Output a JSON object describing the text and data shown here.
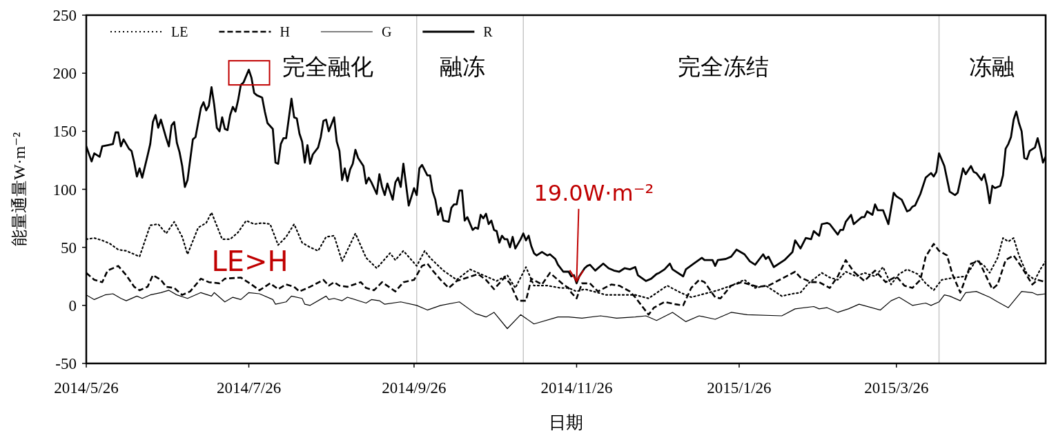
{
  "chart_data": {
    "type": "line",
    "xlabel": "日期",
    "ylabel": "能量通量W·m⁻²",
    "xlim": [
      "2014-05-26",
      "2015-05-21"
    ],
    "xticks": [
      {
        "value": "2014-05-26",
        "label": "2014/5/26"
      },
      {
        "value": "2014-07-26",
        "label": "2014/7/26"
      },
      {
        "value": "2014-09-26",
        "label": "2014/9/26"
      },
      {
        "value": "2014-11-26",
        "label": "2014/11/26"
      },
      {
        "value": "2015-01-26",
        "label": "2015/1/26"
      },
      {
        "value": "2015-03-26",
        "label": "2015/3/26"
      }
    ],
    "ylim": [
      -50,
      250
    ],
    "yticks": [
      -50,
      0,
      50,
      100,
      150,
      200,
      250
    ],
    "legend": "top left",
    "series": [
      {
        "name": "LE",
        "color": "#000000",
        "line_style": "dotted",
        "x": [
          "2014-05-26",
          "2014-05-29",
          "2014-06-01",
          "2014-06-04",
          "2014-06-07",
          "2014-06-10",
          "2014-06-13",
          "2014-06-15",
          "2014-06-19",
          "2014-06-22",
          "2014-06-25",
          "2014-06-28",
          "2014-07-01",
          "2014-07-03",
          "2014-07-07",
          "2014-07-10",
          "2014-07-12",
          "2014-07-16",
          "2014-07-19",
          "2014-07-22",
          "2014-07-25",
          "2014-07-28",
          "2014-07-31",
          "2014-08-03",
          "2014-08-06",
          "2014-08-09",
          "2014-08-12",
          "2014-08-15",
          "2014-08-18",
          "2014-08-21",
          "2014-08-24",
          "2014-08-27",
          "2014-08-30",
          "2014-09-04",
          "2014-09-08",
          "2014-09-12",
          "2014-09-17",
          "2014-09-19",
          "2014-09-22",
          "2014-09-27",
          "2014-09-30",
          "2014-10-02",
          "2014-10-07",
          "2014-10-12",
          "2014-10-17",
          "2014-10-23",
          "2014-10-27",
          "2014-10-31",
          "2014-11-03",
          "2014-11-07",
          "2014-11-10",
          "2014-11-15",
          "2014-11-20",
          "2014-11-23",
          "2014-11-26",
          "2014-11-29",
          "2014-12-04",
          "2014-12-07",
          "2014-12-14",
          "2014-12-18",
          "2014-12-23",
          "2014-12-30",
          "2015-01-04",
          "2015-01-08",
          "2015-01-13",
          "2015-01-18",
          "2015-01-23",
          "2015-01-28",
          "2015-02-01",
          "2015-02-05",
          "2015-02-11",
          "2015-02-15",
          "2015-02-18",
          "2015-02-21",
          "2015-02-26",
          "2015-03-01",
          "2015-03-04",
          "2015-03-07",
          "2015-03-11",
          "2015-03-14",
          "2015-03-18",
          "2015-03-21",
          "2015-03-24",
          "2015-03-27",
          "2015-03-30",
          "2015-04-03",
          "2015-04-06",
          "2015-04-09",
          "2015-04-12",
          "2015-04-17",
          "2015-04-21",
          "2015-04-25",
          "2015-04-28",
          "2015-04-30",
          "2015-05-03",
          "2015-05-05",
          "2015-05-07",
          "2015-05-09",
          "2015-05-11",
          "2015-05-14",
          "2015-05-17",
          "2015-05-19",
          "2015-05-21"
        ],
        "values": [
          57,
          58,
          56,
          53,
          48,
          47,
          44,
          42,
          69,
          70,
          62,
          72,
          59,
          44,
          67,
          71,
          80,
          57,
          57,
          63,
          73,
          70,
          71,
          70,
          52,
          59,
          70,
          54,
          50,
          47,
          59,
          60,
          38,
          62,
          41,
          32,
          45,
          39,
          47,
          34,
          47,
          41,
          30,
          22,
          31,
          25,
          21,
          26,
          15,
          33,
          17,
          17,
          15,
          15,
          12,
          14,
          11,
          9,
          9,
          9,
          6,
          17,
          11,
          7,
          10,
          13,
          17,
          22,
          15,
          17,
          8,
          10,
          11,
          19,
          28,
          24,
          22,
          29,
          25,
          28,
          25,
          33,
          18,
          27,
          31,
          27,
          19,
          13,
          22,
          24,
          25,
          39,
          34,
          28,
          41,
          58,
          55,
          58,
          43,
          27,
          22,
          31,
          38
        ]
      },
      {
        "name": "H",
        "color": "#000000",
        "line_style": "dashed",
        "x": [
          "2014-05-26",
          "2014-05-29",
          "2014-06-01",
          "2014-06-03",
          "2014-06-07",
          "2014-06-10",
          "2014-06-13",
          "2014-06-15",
          "2014-06-18",
          "2014-06-20",
          "2014-06-23",
          "2014-06-25",
          "2014-06-28",
          "2014-07-01",
          "2014-07-04",
          "2014-07-08",
          "2014-07-11",
          "2014-07-15",
          "2014-07-17",
          "2014-07-23",
          "2014-07-27",
          "2014-07-30",
          "2014-08-03",
          "2014-08-06",
          "2014-08-09",
          "2014-08-12",
          "2014-08-14",
          "2014-08-18",
          "2014-08-23",
          "2014-08-25",
          "2014-08-27",
          "2014-08-29",
          "2014-09-01",
          "2014-09-06",
          "2014-09-08",
          "2014-09-11",
          "2014-09-14",
          "2014-09-19",
          "2014-09-22",
          "2014-09-26",
          "2014-09-29",
          "2014-10-01",
          "2014-10-03",
          "2014-10-06",
          "2014-10-09",
          "2014-10-12",
          "2014-10-16",
          "2014-10-20",
          "2014-10-23",
          "2014-10-26",
          "2014-10-30",
          "2014-11-01",
          "2014-11-04",
          "2014-11-07",
          "2014-11-09",
          "2014-11-13",
          "2014-11-16",
          "2014-11-21",
          "2014-11-23",
          "2014-11-24",
          "2014-11-26",
          "2014-11-28",
          "2014-12-01",
          "2014-12-04",
          "2014-12-09",
          "2014-12-12",
          "2014-12-16",
          "2014-12-18",
          "2014-12-23",
          "2014-12-25",
          "2014-12-29",
          "2015-01-02",
          "2015-01-05",
          "2015-01-08",
          "2015-01-11",
          "2015-01-13",
          "2015-01-17",
          "2015-01-19",
          "2015-01-23",
          "2015-01-27",
          "2015-02-02",
          "2015-02-06",
          "2015-02-11",
          "2015-02-16",
          "2015-02-18",
          "2015-02-22",
          "2015-02-25",
          "2015-03-01",
          "2015-03-04",
          "2015-03-07",
          "2015-03-10",
          "2015-03-14",
          "2015-03-18",
          "2015-03-22",
          "2015-03-26",
          "2015-03-29",
          "2015-04-01",
          "2015-04-04",
          "2015-04-06",
          "2015-04-09",
          "2015-04-11",
          "2015-04-14",
          "2015-04-16",
          "2015-04-19",
          "2015-04-23",
          "2015-04-26",
          "2015-05-01",
          "2015-05-03",
          "2015-05-06",
          "2015-05-09",
          "2015-05-12",
          "2015-05-16",
          "2015-05-18",
          "2015-05-21"
        ],
        "values": [
          28,
          22,
          20,
          30,
          34,
          26,
          16,
          13,
          16,
          26,
          22,
          16,
          15,
          9,
          12,
          23,
          20,
          19,
          23,
          24,
          18,
          13,
          19,
          14,
          18,
          16,
          12,
          16,
          22,
          17,
          20,
          17,
          16,
          20,
          15,
          13,
          20,
          12,
          20,
          22,
          34,
          36,
          30,
          22,
          15,
          21,
          24,
          27,
          22,
          14,
          24,
          19,
          4,
          4,
          23,
          18,
          28,
          18,
          15,
          11,
          6,
          19,
          19,
          12,
          18,
          17,
          12,
          7,
          -8,
          -2,
          3,
          1,
          0,
          15,
          22,
          20,
          7,
          6,
          17,
          20,
          16,
          17,
          23,
          29,
          24,
          20,
          20,
          15,
          25,
          39,
          29,
          21,
          30,
          20,
          25,
          17,
          15,
          22,
          42,
          53,
          47,
          43,
          27,
          11,
          36,
          38,
          14,
          18,
          39,
          43,
          33,
          18,
          22,
          20
        ]
      },
      {
        "name": "G",
        "color": "#000000",
        "line_style": "solid",
        "x": [
          "2014-05-26",
          "2014-05-29",
          "2014-06-02",
          "2014-06-05",
          "2014-06-08",
          "2014-06-10",
          "2014-06-14",
          "2014-06-16",
          "2014-06-19",
          "2014-06-23",
          "2014-06-26",
          "2014-06-29",
          "2014-07-03",
          "2014-07-08",
          "2014-07-12",
          "2014-07-13",
          "2014-07-17",
          "2014-07-20",
          "2014-07-23",
          "2014-07-26",
          "2014-07-30",
          "2014-08-04",
          "2014-08-05",
          "2014-08-09",
          "2014-08-11",
          "2014-08-15",
          "2014-08-16",
          "2014-08-18",
          "2014-08-24",
          "2014-08-25",
          "2014-08-27",
          "2014-08-30",
          "2014-09-01",
          "2014-09-08",
          "2014-09-10",
          "2014-09-13",
          "2014-09-15",
          "2014-09-21",
          "2014-09-27",
          "2014-10-01",
          "2014-10-06",
          "2014-10-13",
          "2014-10-19",
          "2014-10-23",
          "2014-10-26",
          "2014-10-31",
          "2014-11-05",
          "2014-11-10",
          "2014-11-19",
          "2014-11-23",
          "2014-11-28",
          "2014-12-05",
          "2014-12-11",
          "2014-12-18",
          "2014-12-22",
          "2014-12-26",
          "2015-01-01",
          "2015-01-06",
          "2015-01-11",
          "2015-01-17",
          "2015-01-23",
          "2015-01-29",
          "2015-02-11",
          "2015-02-16",
          "2015-02-23",
          "2015-02-25",
          "2015-02-28",
          "2015-03-04",
          "2015-03-08",
          "2015-03-12",
          "2015-03-20",
          "2015-03-24",
          "2015-03-27",
          "2015-04-01",
          "2015-04-06",
          "2015-04-08",
          "2015-04-11",
          "2015-04-13",
          "2015-04-15",
          "2015-04-19",
          "2015-04-21",
          "2015-04-25",
          "2015-04-30",
          "2015-05-03",
          "2015-05-07",
          "2015-05-12",
          "2015-05-16",
          "2015-05-18",
          "2015-05-21"
        ],
        "values": [
          9,
          5,
          9,
          10,
          6,
          4,
          8,
          6,
          9,
          11,
          13,
          9,
          6,
          11,
          8,
          11,
          3,
          7,
          5,
          11,
          10,
          5,
          1,
          3,
          8,
          6,
          1,
          0,
          8,
          5,
          6,
          4,
          7,
          2,
          5,
          4,
          1,
          3,
          0,
          -4,
          0,
          3,
          -7,
          -10,
          -6,
          -20,
          -8,
          -16,
          -10,
          -10,
          -11,
          -9,
          -11,
          -10,
          -9,
          -13,
          -6,
          -14,
          -9,
          -12,
          -6,
          -8,
          -9,
          -3,
          -1,
          -3,
          -2,
          -6,
          -3,
          1,
          -4,
          4,
          7,
          0,
          2,
          0,
          3,
          9,
          8,
          4,
          11,
          12,
          7,
          3,
          -2,
          12,
          11,
          9,
          10
        ]
      },
      {
        "name": "R",
        "color": "#000000",
        "line_style": "solid",
        "x": [
          "2014-05-26",
          "2014-05-28",
          "2014-05-29",
          "2014-05-31",
          "2014-06-01",
          "2014-06-03",
          "2014-06-05",
          "2014-06-06",
          "2014-06-07",
          "2014-06-08",
          "2014-06-09",
          "2014-06-11",
          "2014-06-12",
          "2014-06-13",
          "2014-06-14",
          "2014-06-15",
          "2014-06-16",
          "2014-06-18",
          "2014-06-19",
          "2014-06-20",
          "2014-06-21",
          "2014-06-22",
          "2014-06-23",
          "2014-06-25",
          "2014-06-26",
          "2014-06-27",
          "2014-06-28",
          "2014-06-29",
          "2014-06-30",
          "2014-07-01",
          "2014-07-02",
          "2014-07-03",
          "2014-07-05",
          "2014-07-06",
          "2014-07-08",
          "2014-07-09",
          "2014-07-10",
          "2014-07-11",
          "2014-07-12",
          "2014-07-13",
          "2014-07-14",
          "2014-07-15",
          "2014-07-16",
          "2014-07-17",
          "2014-07-18",
          "2014-07-19",
          "2014-07-20",
          "2014-07-21",
          "2014-07-22",
          "2014-07-23",
          "2014-07-24",
          "2014-07-26",
          "2014-07-27",
          "2014-07-28",
          "2014-07-29",
          "2014-07-31",
          "2014-08-01",
          "2014-08-02",
          "2014-08-04",
          "2014-08-05",
          "2014-08-06",
          "2014-08-07",
          "2014-08-08",
          "2014-08-09",
          "2014-08-10",
          "2014-08-11",
          "2014-08-12",
          "2014-08-13",
          "2014-08-14",
          "2014-08-15",
          "2014-08-16",
          "2014-08-17",
          "2014-08-18",
          "2014-08-19",
          "2014-08-21",
          "2014-08-22",
          "2014-08-23",
          "2014-08-24",
          "2014-08-25",
          "2014-08-27",
          "2014-08-28",
          "2014-08-29",
          "2014-08-30",
          "2014-08-31",
          "2014-09-01",
          "2014-09-02",
          "2014-09-03",
          "2014-09-04",
          "2014-09-05",
          "2014-09-07",
          "2014-09-08",
          "2014-09-09",
          "2014-09-10",
          "2014-09-12",
          "2014-09-13",
          "2014-09-14",
          "2014-09-15",
          "2014-09-16",
          "2014-09-18",
          "2014-09-19",
          "2014-09-20",
          "2014-09-21",
          "2014-09-22",
          "2014-09-23",
          "2014-09-24",
          "2014-09-26",
          "2014-09-27",
          "2014-09-28",
          "2014-09-29",
          "2014-10-01",
          "2014-10-02",
          "2014-10-03",
          "2014-10-04",
          "2014-10-05",
          "2014-10-06",
          "2014-10-07",
          "2014-10-09",
          "2014-10-10",
          "2014-10-11",
          "2014-10-12",
          "2014-10-13",
          "2014-10-14",
          "2014-10-15",
          "2014-10-16",
          "2014-10-18",
          "2014-10-19",
          "2014-10-20",
          "2014-10-21",
          "2014-10-22",
          "2014-10-23",
          "2014-10-24",
          "2014-10-25",
          "2014-10-26",
          "2014-10-27",
          "2014-10-28",
          "2014-10-29",
          "2014-10-30",
          "2014-10-31",
          "2014-11-01",
          "2014-11-02",
          "2014-11-03",
          "2014-11-05",
          "2014-11-06",
          "2014-11-07",
          "2014-11-08",
          "2014-11-09",
          "2014-11-10",
          "2014-11-11",
          "2014-11-13",
          "2014-11-15",
          "2014-11-16",
          "2014-11-18",
          "2014-11-19",
          "2014-11-21",
          "2014-11-23",
          "2014-11-24",
          "2014-11-25",
          "2014-11-26",
          "2014-11-27",
          "2014-11-29",
          "2014-11-30",
          "2014-12-01",
          "2014-12-03",
          "2014-12-06",
          "2014-12-08",
          "2014-12-10",
          "2014-12-12",
          "2014-12-14",
          "2014-12-16",
          "2014-12-18",
          "2014-12-19",
          "2014-12-22",
          "2014-12-24",
          "2014-12-26",
          "2014-12-27",
          "2014-12-29",
          "2014-12-31",
          "2015-01-01",
          "2015-01-05",
          "2015-01-06",
          "2015-01-09",
          "2015-01-12",
          "2015-01-13",
          "2015-01-16",
          "2015-01-17",
          "2015-01-18",
          "2015-01-21",
          "2015-01-23",
          "2015-01-25",
          "2015-01-28",
          "2015-01-30",
          "2015-02-01",
          "2015-02-04",
          "2015-02-05",
          "2015-02-06",
          "2015-02-08",
          "2015-02-12",
          "2015-02-15",
          "2015-02-16",
          "2015-02-18",
          "2015-02-20",
          "2015-02-22",
          "2015-02-23",
          "2015-02-25",
          "2015-02-26",
          "2015-02-28",
          "2015-03-01",
          "2015-03-03",
          "2015-03-04",
          "2015-03-05",
          "2015-03-06",
          "2015-03-07",
          "2015-03-09",
          "2015-03-10",
          "2015-03-12",
          "2015-03-13",
          "2015-03-14",
          "2015-03-15",
          "2015-03-17",
          "2015-03-18",
          "2015-03-19",
          "2015-03-20",
          "2015-03-21",
          "2015-03-23",
          "2015-03-25",
          "2015-03-26",
          "2015-03-28",
          "2015-03-30",
          "2015-03-31",
          "2015-04-01",
          "2015-04-02",
          "2015-04-04",
          "2015-04-06",
          "2015-04-07",
          "2015-04-08",
          "2015-04-09",
          "2015-04-10",
          "2015-04-11",
          "2015-04-13",
          "2015-04-15",
          "2015-04-17",
          "2015-04-18",
          "2015-04-20",
          "2015-04-21",
          "2015-04-23",
          "2015-04-24",
          "2015-04-25",
          "2015-04-27",
          "2015-04-28",
          "2015-04-29",
          "2015-04-30",
          "2015-05-01",
          "2015-05-02",
          "2015-05-04",
          "2015-05-05",
          "2015-05-06",
          "2015-05-07",
          "2015-05-08",
          "2015-05-09",
          "2015-05-10",
          "2015-05-11",
          "2015-05-12",
          "2015-05-13",
          "2015-05-14",
          "2015-05-15",
          "2015-05-17",
          "2015-05-18",
          "2015-05-19",
          "2015-05-20",
          "2015-05-21"
        ],
        "values": [
          137,
          124,
          131,
          128,
          137,
          138,
          139,
          149,
          149,
          137,
          143,
          135,
          133,
          123,
          111,
          118,
          110,
          129,
          139,
          158,
          164,
          153,
          160,
          144,
          137,
          155,
          158,
          140,
          132,
          120,
          102,
          108,
          143,
          145,
          170,
          175,
          168,
          172,
          188,
          173,
          153,
          150,
          162,
          152,
          151,
          164,
          171,
          167,
          177,
          190,
          192,
          203,
          196,
          183,
          181,
          179,
          167,
          157,
          152,
          123,
          122,
          139,
          144,
          144,
          161,
          178,
          162,
          161,
          148,
          141,
          123,
          138,
          122,
          130,
          136,
          145,
          159,
          160,
          150,
          162,
          141,
          133,
          108,
          118,
          107,
          117,
          122,
          134,
          127,
          120,
          105,
          110,
          106,
          96,
          113,
          102,
          95,
          105,
          91,
          106,
          110,
          102,
          122,
          104,
          86,
          101,
          95,
          118,
          121,
          112,
          112,
          98,
          91,
          78,
          84,
          73,
          72,
          84,
          87,
          87,
          99,
          99,
          73,
          76,
          65,
          67,
          66,
          78,
          75,
          79,
          70,
          73,
          65,
          64,
          54,
          60,
          57,
          57,
          50,
          59,
          49,
          57,
          62,
          56,
          60,
          51,
          45,
          43,
          46,
          43,
          44,
          40,
          35,
          29,
          29,
          25,
          26,
          19.0,
          25,
          32,
          34,
          35,
          30,
          36,
          32,
          30,
          29,
          32,
          31,
          33,
          26,
          21,
          23,
          27,
          28,
          31,
          36,
          31,
          25,
          31,
          36,
          41,
          39,
          39,
          34,
          39,
          40,
          42,
          48,
          44,
          38,
          35,
          44,
          40,
          42,
          33,
          39,
          46,
          56,
          49,
          58,
          57,
          64,
          60,
          70,
          71,
          70,
          64,
          61,
          65,
          65,
          72,
          78,
          70,
          74,
          76,
          76,
          81,
          78,
          87,
          82,
          82,
          82,
          70,
          97,
          94,
          91,
          81,
          82,
          85,
          86,
          96,
          110,
          112,
          114,
          111,
          115,
          131,
          120,
          98,
          95,
          97,
          118,
          113,
          120,
          115,
          114,
          108,
          113,
          103,
          88,
          103,
          101,
          103,
          112,
          135,
          139,
          145,
          160,
          167,
          157,
          150,
          127,
          126,
          133,
          136,
          144,
          135,
          123,
          128
        ]
      }
    ],
    "ref_lines": [
      {
        "axis": "x",
        "value": "2014-09-27",
        "color": "#bfbfbf"
      },
      {
        "axis": "x",
        "value": "2014-11-06",
        "color": "#bfbfbf"
      },
      {
        "axis": "x",
        "value": "2015-04-11",
        "color": "#bfbfbf"
      }
    ],
    "annotations": [
      "完全融化",
      "融冻",
      "完全冻结",
      "冻融",
      "LE>H",
      {
        "text": "19.0W·m⁻²",
        "x": "2014-11-26",
        "y": 19.0
      }
    ]
  }
}
